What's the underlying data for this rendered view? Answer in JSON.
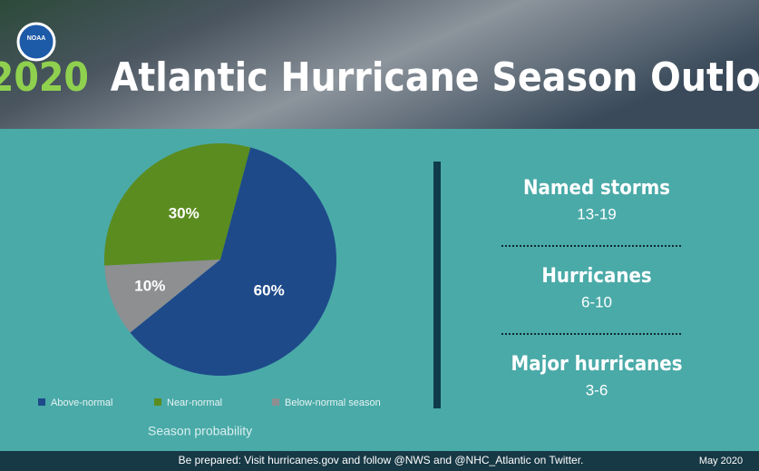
{
  "header": {
    "logo": "NOAA",
    "year": "2020",
    "title": "Atlantic Hurricane Season Outlook"
  },
  "chart_data": {
    "type": "pie",
    "categories": [
      "Above-normal",
      "Near-normal",
      "Below-normal season"
    ],
    "values": [
      60,
      30,
      10
    ],
    "value_labels": [
      "60%",
      "30%",
      "10%"
    ],
    "colors": [
      "#1e4a8a",
      "#5b8c1f",
      "#8d8f91"
    ],
    "caption": "Season probability"
  },
  "stats": [
    {
      "label": "Named storms",
      "value": "13-19"
    },
    {
      "label": "Hurricanes",
      "value": "6-10"
    },
    {
      "label": "Major hurricanes",
      "value": "3-6"
    }
  ],
  "footer": {
    "text": "Be prepared: Visit hurricanes.gov and follow @NWS and @NHC_Atlantic on Twitter.",
    "date": "May 2020"
  }
}
